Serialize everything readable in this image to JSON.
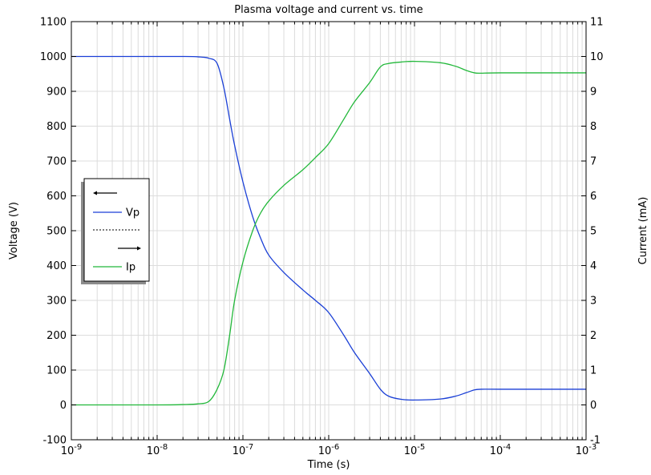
{
  "chart_data": {
    "type": "line",
    "title": "Plasma voltage and current vs. time",
    "xlabel": "Time (s)",
    "ylabel_left": "Voltage (V)",
    "ylabel_right": "Current (mA)",
    "xscale": "log",
    "xlim": [
      1e-09,
      0.001
    ],
    "ylim_left": [
      -100,
      1100
    ],
    "ylim_right": [
      -1,
      11
    ],
    "grid": true,
    "legend_position": "left-middle",
    "x_tick_labels": [
      {
        "base": "10",
        "exp": "-9"
      },
      {
        "base": "10",
        "exp": "-8"
      },
      {
        "base": "10",
        "exp": "-7"
      },
      {
        "base": "10",
        "exp": "-6"
      },
      {
        "base": "10",
        "exp": "-5"
      },
      {
        "base": "10",
        "exp": "-4"
      },
      {
        "base": "10",
        "exp": "-3"
      }
    ],
    "y_left_ticks": [
      "-100",
      "0",
      "100",
      "200",
      "300",
      "400",
      "500",
      "600",
      "700",
      "800",
      "900",
      "1000",
      "1100"
    ],
    "y_right_ticks": [
      "-1",
      "0",
      "1",
      "2",
      "3",
      "4",
      "5",
      "6",
      "7",
      "8",
      "9",
      "10",
      "11"
    ],
    "series": [
      {
        "name": "Vp",
        "axis": "left",
        "color": "#1a3fd6",
        "points": [
          [
            1e-09,
            1000
          ],
          [
            1e-08,
            1000
          ],
          [
            2e-08,
            1000
          ],
          [
            3e-08,
            999
          ],
          [
            4e-08,
            995
          ],
          [
            5e-08,
            980
          ],
          [
            6e-08,
            910
          ],
          [
            7e-08,
            820
          ],
          [
            8e-08,
            745
          ],
          [
            1e-07,
            640
          ],
          [
            1.3e-07,
            540
          ],
          [
            1.6e-07,
            480
          ],
          [
            2e-07,
            430
          ],
          [
            3e-07,
            380
          ],
          [
            5e-07,
            330
          ],
          [
            7e-07,
            300
          ],
          [
            1e-06,
            265
          ],
          [
            1.5e-06,
            200
          ],
          [
            2e-06,
            150
          ],
          [
            3e-06,
            90
          ],
          [
            4e-06,
            45
          ],
          [
            5e-06,
            25
          ],
          [
            7e-06,
            16
          ],
          [
            1e-05,
            14
          ],
          [
            2e-05,
            17
          ],
          [
            3e-05,
            25
          ],
          [
            4e-05,
            35
          ],
          [
            5e-05,
            43
          ],
          [
            6e-05,
            45
          ],
          [
            0.0001,
            45
          ],
          [
            0.001,
            45
          ]
        ]
      },
      {
        "name": "Ip",
        "axis": "right",
        "color": "#22b83a",
        "points": [
          [
            1e-09,
            0
          ],
          [
            1e-08,
            0
          ],
          [
            2e-08,
            0.01
          ],
          [
            3e-08,
            0.03
          ],
          [
            4e-08,
            0.1
          ],
          [
            5e-08,
            0.45
          ],
          [
            6e-08,
            1.0
          ],
          [
            7e-08,
            2.0
          ],
          [
            8e-08,
            3.0
          ],
          [
            1e-07,
            4.1
          ],
          [
            1.3e-07,
            5.0
          ],
          [
            1.6e-07,
            5.5
          ],
          [
            2e-07,
            5.85
          ],
          [
            3e-07,
            6.3
          ],
          [
            5e-07,
            6.75
          ],
          [
            7e-07,
            7.1
          ],
          [
            1e-06,
            7.5
          ],
          [
            1.5e-06,
            8.2
          ],
          [
            2e-06,
            8.7
          ],
          [
            3e-06,
            9.25
          ],
          [
            4e-06,
            9.7
          ],
          [
            5e-06,
            9.8
          ],
          [
            7e-06,
            9.84
          ],
          [
            1e-05,
            9.86
          ],
          [
            2e-05,
            9.82
          ],
          [
            3e-05,
            9.72
          ],
          [
            4e-05,
            9.6
          ],
          [
            5e-05,
            9.53
          ],
          [
            6e-05,
            9.52
          ],
          [
            0.0001,
            9.53
          ],
          [
            0.001,
            9.53
          ]
        ]
      }
    ],
    "legend_entries": [
      {
        "kind": "arrow-left",
        "text": ""
      },
      {
        "kind": "line",
        "text": "Vp",
        "color": "#1a3fd6"
      },
      {
        "kind": "dashed",
        "text": ""
      },
      {
        "kind": "arrow-right",
        "text": ""
      },
      {
        "kind": "line",
        "text": "Ip",
        "color": "#22b83a"
      }
    ]
  }
}
